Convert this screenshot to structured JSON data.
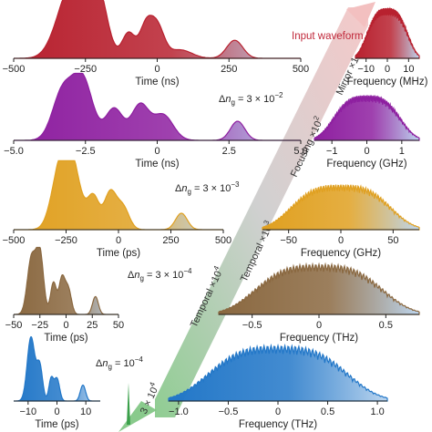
{
  "chart_data": [
    {
      "id": "time-1",
      "type": "area",
      "xlabel": "Time (ns)",
      "xticks": [
        "−500",
        "−250",
        "0",
        "250",
        "500"
      ],
      "xlim": [
        -500,
        500
      ],
      "color": "#b8212f",
      "peaks": [
        [
          -310,
          1.0,
          45
        ],
        [
          -250,
          0.95,
          40
        ],
        [
          -200,
          0.8,
          30
        ],
        [
          -100,
          0.45,
          22
        ],
        [
          -40,
          0.55,
          22
        ],
        [
          0,
          0.55,
          24
        ],
        [
          80,
          0.15,
          40
        ],
        [
          270,
          0.32,
          28
        ]
      ],
      "annotation": "Input waveform"
    },
    {
      "id": "time-2",
      "type": "area",
      "xlabel": "Time (ns)",
      "xticks": [
        "−5.0",
        "−2.5",
        "0",
        "2.5",
        "5.0"
      ],
      "xlim": [
        -5,
        5
      ],
      "color": "#8e1fa0",
      "peaks": [
        [
          -3.3,
          0.75,
          0.35
        ],
        [
          -2.6,
          0.95,
          0.35
        ],
        [
          -1.5,
          0.5,
          0.3
        ],
        [
          -0.6,
          0.55,
          0.3
        ],
        [
          0.2,
          0.4,
          0.35
        ],
        [
          2.8,
          0.3,
          0.25
        ]
      ],
      "annotation": "Δn_g = 3 × 10^−2"
    },
    {
      "id": "time-3",
      "type": "area",
      "xlabel": "Time (ps)",
      "xticks": [
        "−500",
        "−250",
        "0",
        "250",
        "500"
      ],
      "xlim": [
        -500,
        500
      ],
      "color": "#e0a020",
      "peaks": [
        [
          -280,
          0.85,
          40
        ],
        [
          -220,
          0.92,
          40
        ],
        [
          -120,
          0.5,
          28
        ],
        [
          -40,
          0.55,
          28
        ],
        [
          20,
          0.35,
          30
        ],
        [
          300,
          0.25,
          28
        ]
      ],
      "annotation": "Δn_g = 3 × 10^−3"
    },
    {
      "id": "time-4",
      "type": "area",
      "xlabel": "Time (ps)",
      "xticks": [
        "−50",
        "−25",
        "0",
        "25",
        "50"
      ],
      "xlim": [
        -50,
        50
      ],
      "color": "#8a6840",
      "peaks": [
        [
          -33,
          0.88,
          4
        ],
        [
          -25,
          0.95,
          3.5
        ],
        [
          -12,
          0.5,
          2.8
        ],
        [
          -4,
          0.55,
          2.8
        ],
        [
          2,
          0.4,
          3
        ],
        [
          28,
          0.28,
          2.8
        ]
      ],
      "annotation": "Δn_g = 3 × 10^−4"
    },
    {
      "id": "time-5",
      "type": "area",
      "xlabel": "Time (ps)",
      "xticks": [
        "−10",
        "0",
        "10"
      ],
      "xlim": [
        -15,
        15
      ],
      "color": "#2277c8",
      "peaks": [
        [
          -9,
          1.0,
          1.3
        ],
        [
          -6,
          0.55,
          1.0
        ],
        [
          -2,
          0.35,
          0.8
        ],
        [
          0,
          0.35,
          0.9
        ],
        [
          9,
          0.25,
          0.9
        ]
      ],
      "annotation": "Δn_g = 10^−4"
    },
    {
      "id": "freq-1",
      "type": "area",
      "xlabel": "Frequency (MHz)",
      "xticks": [
        "−10",
        "0",
        "10"
      ],
      "xlim": [
        -15,
        15
      ],
      "color": "#b8212f"
    },
    {
      "id": "freq-2",
      "type": "area",
      "xlabel": "Frequency (GHz)",
      "xticks": [
        "−1",
        "0",
        "1"
      ],
      "xlim": [
        -1.5,
        1.5
      ],
      "color": "#8e1fa0"
    },
    {
      "id": "freq-3",
      "type": "area",
      "xlabel": "Frequency (GHz)",
      "xticks": [
        "−50",
        "0",
        "50"
      ],
      "xlim": [
        -60,
        60
      ],
      "color": "#e0a020"
    },
    {
      "id": "freq-4",
      "type": "area",
      "xlabel": "Frequency (THz)",
      "xticks": [
        "−0.5",
        "0",
        "0.5"
      ],
      "xlim": [
        -0.75,
        0.75
      ],
      "color": "#8a6840"
    },
    {
      "id": "freq-5",
      "type": "area",
      "xlabel": "Frequency (THz)",
      "xticks": [
        "−1.0",
        "−0.5",
        "0",
        "0.5",
        "1.0"
      ],
      "xlim": [
        -1.1,
        1.1
      ],
      "color": "#2277c8"
    }
  ],
  "arrow_labels": {
    "mirror": "Mirror ×1",
    "focusing": "Focusing ×10",
    "temporal": "Temporal ×10",
    "last": "3 × 10"
  },
  "arrow_exps": {
    "focusing": "2",
    "temporal1": "3",
    "temporal2": "4",
    "last": "4"
  }
}
